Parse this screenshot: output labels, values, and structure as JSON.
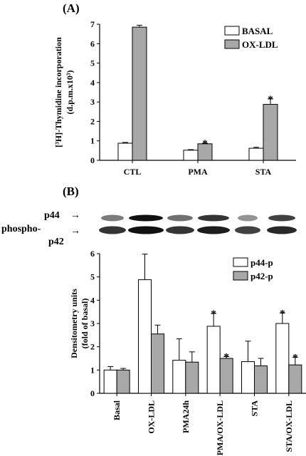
{
  "panel_a_label": "(A)",
  "panel_b_label": "(B)",
  "blot": {
    "p44_label": "p44",
    "p42_label": "p42",
    "phospho_label": "phospho-",
    "p44_arrow": "→",
    "p42_arrow": "→"
  },
  "colors": {
    "bar_white": "#ffffff",
    "bar_gray": "#a8a8a8",
    "axis": "#000000"
  },
  "chart_data": [
    {
      "type": "bar",
      "title": "",
      "xlabel": "",
      "ylabel_line1": "[³H]-Thymidine incorporation",
      "ylabel_line2": "(d.p.m.x10³)",
      "ylim": [
        0,
        7
      ],
      "yticks": [
        0,
        1,
        2,
        3,
        4,
        5,
        6,
        7
      ],
      "categories": [
        "CTL",
        "PMA",
        "STA"
      ],
      "legend_position": "top-right",
      "series": [
        {
          "name": "BASAL",
          "color": "#ffffff",
          "values": [
            0.88,
            0.52,
            0.62
          ],
          "errors": [
            0.04,
            0.03,
            0.05
          ]
        },
        {
          "name": "OX-LDL",
          "color": "#a8a8a8",
          "values": [
            6.85,
            0.85,
            2.88
          ],
          "errors": [
            0.1,
            0.03,
            0.28
          ]
        }
      ],
      "significance": [
        {
          "category": "PMA",
          "series": "OX-LDL",
          "mark": "*"
        },
        {
          "category": "STA",
          "series": "OX-LDL",
          "mark": "*"
        }
      ]
    },
    {
      "type": "bar",
      "title": "",
      "xlabel": "",
      "ylabel_line1": "Densitometry units",
      "ylabel_line2": "(fold of basal)",
      "ylim": [
        0,
        6
      ],
      "yticks": [
        0,
        1,
        2,
        3,
        4,
        5,
        6
      ],
      "categories": [
        "Basal",
        "OX-LDL",
        "PMA24h",
        "PMA/OX-LDL",
        "STA",
        "STA/OX-LDL"
      ],
      "legend_position": "top-right",
      "series": [
        {
          "name": "p44-p",
          "color": "#ffffff",
          "values": [
            1.0,
            4.88,
            1.42,
            2.88,
            1.36,
            3.0
          ],
          "errors": [
            0.15,
            1.1,
            0.92,
            0.55,
            0.88,
            0.45
          ]
        },
        {
          "name": "p42-p",
          "color": "#a8a8a8",
          "values": [
            1.0,
            2.55,
            1.34,
            1.5,
            1.18,
            1.22
          ],
          "errors": [
            0.07,
            0.38,
            0.44,
            0.08,
            0.32,
            0.33
          ]
        }
      ],
      "significance": [
        {
          "category": "PMA/OX-LDL",
          "series": "p44-p",
          "mark": "*"
        },
        {
          "category": "PMA/OX-LDL",
          "series": "p42-p",
          "mark": "*"
        },
        {
          "category": "STA/OX-LDL",
          "series": "p44-p",
          "mark": "*"
        },
        {
          "category": "STA/OX-LDL",
          "series": "p42-p",
          "mark": "*"
        }
      ]
    }
  ]
}
